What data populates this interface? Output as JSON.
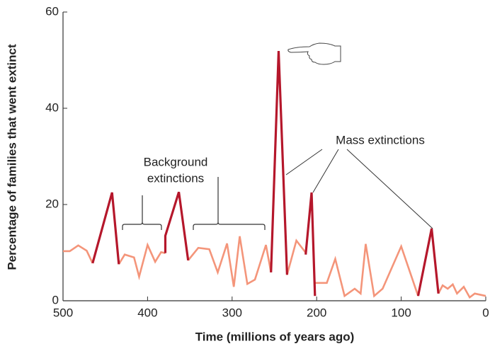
{
  "chart_data": {
    "type": "line",
    "x_label": "Time (millions of years ago)",
    "y_label": "Percentage of families that went extinct",
    "xlim": [
      500,
      0
    ],
    "xticks": [
      500,
      400,
      300,
      200,
      100,
      0
    ],
    "ylim": [
      0,
      60
    ],
    "yticks": [
      0,
      20,
      40,
      60
    ],
    "annotations": [
      "Background",
      "extinctions",
      "Mass extinctions"
    ],
    "series": [
      {
        "color": "#f4957a",
        "x": [
          500,
          492,
          482,
          472,
          465,
          null,
          434,
          427,
          416,
          410,
          400,
          391,
          384,
          379,
          null,
          352,
          340,
          327,
          317,
          306,
          298,
          291,
          282,
          273,
          260,
          254,
          null,
          235,
          224,
          213,
          null,
          202,
          188,
          178,
          167,
          155,
          148,
          142,
          132,
          122,
          100,
          80,
          null,
          56,
          51,
          45,
          39,
          34,
          26,
          19,
          13,
          0
        ],
        "values": [
          10.3,
          10.3,
          11.5,
          10.4,
          7.8,
          null,
          7.6,
          9.6,
          9.0,
          5.0,
          11.6,
          8.1,
          10.1,
          9.9,
          null,
          8.4,
          11.0,
          10.7,
          5.9,
          11.9,
          2.9,
          13.4,
          3.5,
          4.4,
          11.6,
          5.9,
          null,
          5.4,
          12.5,
          10.0,
          null,
          3.7,
          3.7,
          8.7,
          1.0,
          2.5,
          1.5,
          11.8,
          1.0,
          2.5,
          11.3,
          1.0,
          null,
          1.5,
          3.2,
          2.5,
          3.4,
          1.5,
          2.9,
          0.7,
          1.5,
          1.0
        ]
      },
      {
        "color": "#b5172b",
        "x": [
          465,
          442,
          434,
          null,
          379,
          379,
          363,
          352,
          null,
          254,
          245,
          235,
          null,
          213,
          206,
          202,
          null,
          80,
          64,
          56
        ],
        "values": [
          7.8,
          22.5,
          7.6,
          null,
          9.9,
          13.5,
          22.6,
          8.4,
          null,
          5.9,
          51.9,
          5.4,
          null,
          9.6,
          22.5,
          1.0,
          null,
          1.0,
          15.0,
          1.5
        ]
      }
    ]
  }
}
